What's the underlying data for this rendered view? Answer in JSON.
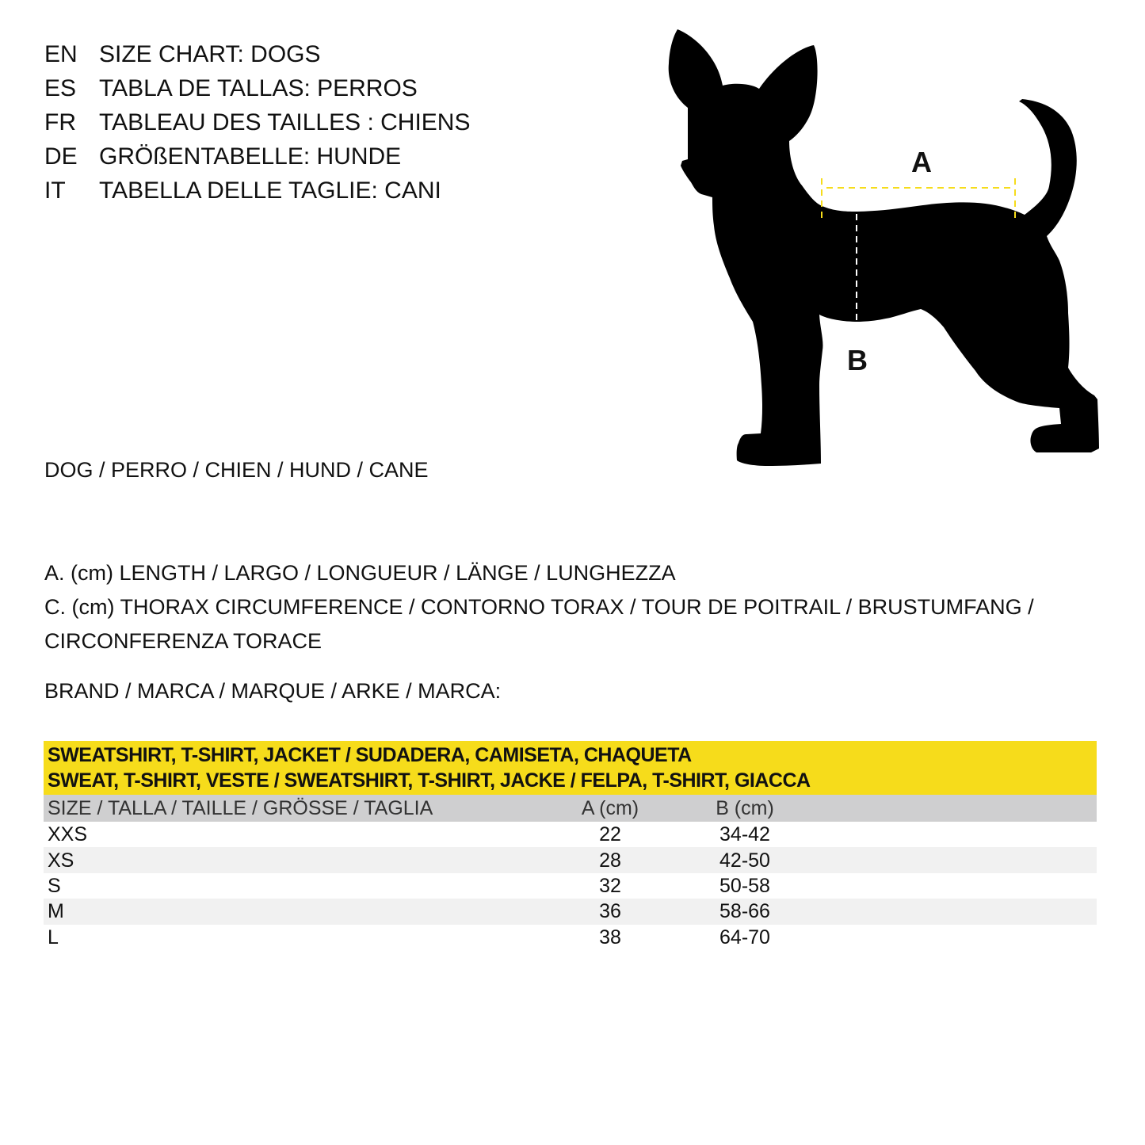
{
  "titles": [
    {
      "code": "EN",
      "text": "SIZE CHART: DOGS"
    },
    {
      "code": "ES",
      "text": "TABLA DE TALLAS: PERROS"
    },
    {
      "code": "FR",
      "text": "TABLEAU DES TAILLES : CHIENS"
    },
    {
      "code": "DE",
      "text": "GRÖßENTABELLE: HUNDE"
    },
    {
      "code": "IT",
      "text": "TABELLA DELLE TAGLIE: CANI"
    }
  ],
  "animal_line": "DOG / PERRO / CHIEN / HUND / CANE",
  "legend": {
    "a": "A. (cm) LENGTH / LARGO / LONGUEUR / LÄNGE / LUNGHEZZA",
    "c": "C. (cm) THORAX CIRCUMFERENCE / CONTORNO TORAX / TOUR DE POITRAIL / BRUSTUMFANG / CIRCONFERENZA TORACE"
  },
  "brand_line": "BRAND / MARCA / MARQUE / ARKE / MARCA:",
  "diagram": {
    "label_a": "A",
    "label_b": "B",
    "accent_color": "#f6dc1b",
    "silhouette_color": "#000000"
  },
  "table": {
    "band_color": "#f6dc1b",
    "garment_line1": "SWEATSHIRT, T-SHIRT, JACKET / SUDADERA, CAMISETA, CHAQUETA",
    "garment_line2": "SWEAT, T-SHIRT, VESTE / SWEATSHIRT, T-SHIRT, JACKE / FELPA, T-SHIRT, GIACCA",
    "headers": [
      "SIZE / TALLA / TAILLE / GRÖSSE / TAGLIA",
      "A (cm)",
      "B (cm)"
    ],
    "rows": [
      [
        "XXS",
        "22",
        "34-42"
      ],
      [
        "XS",
        "28",
        "42-50"
      ],
      [
        "S",
        "32",
        "50-58"
      ],
      [
        "M",
        "36",
        "58-66"
      ],
      [
        "L",
        "38",
        "64-70"
      ]
    ]
  }
}
